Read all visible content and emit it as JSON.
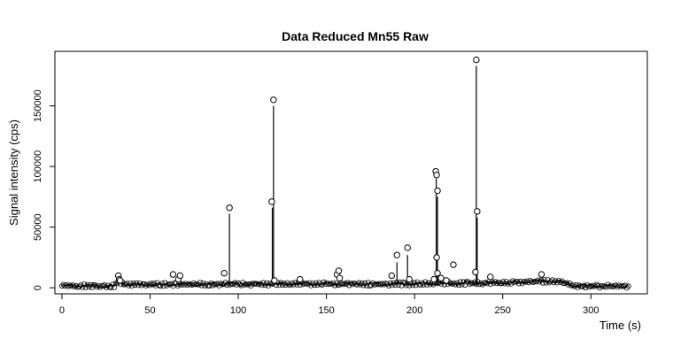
{
  "chart_data": {
    "type": "scatter",
    "title": "Data Reduced Mn55 Raw",
    "xlabel": "Time (s)",
    "ylabel": "Signal intensity (cps)",
    "xlim": [
      -4,
      332
    ],
    "ylim": [
      -5000,
      195000
    ],
    "x_ticks": [
      0,
      50,
      100,
      150,
      200,
      250,
      300
    ],
    "y_ticks": [
      0,
      50000,
      100000,
      150000
    ],
    "grid": false,
    "baseline": [
      {
        "x": 0,
        "y": 1500
      },
      {
        "x": 30,
        "y": 1500
      },
      {
        "x": 32,
        "y": 5000
      },
      {
        "x": 36,
        "y": 2500
      },
      {
        "x": 60,
        "y": 2800
      },
      {
        "x": 100,
        "y": 3000
      },
      {
        "x": 140,
        "y": 3200
      },
      {
        "x": 180,
        "y": 3000
      },
      {
        "x": 210,
        "y": 3500
      },
      {
        "x": 240,
        "y": 3800
      },
      {
        "x": 260,
        "y": 4500
      },
      {
        "x": 270,
        "y": 5500
      },
      {
        "x": 282,
        "y": 5000
      },
      {
        "x": 290,
        "y": 1500
      },
      {
        "x": 322,
        "y": 1200
      }
    ],
    "points": [
      {
        "x": 32,
        "y": 10000
      },
      {
        "x": 32.5,
        "y": 7000
      },
      {
        "x": 33,
        "y": 6000
      },
      {
        "x": 63,
        "y": 11000
      },
      {
        "x": 66,
        "y": 7000
      },
      {
        "x": 67,
        "y": 10000
      },
      {
        "x": 92,
        "y": 12000
      },
      {
        "x": 95,
        "y": 66000
      },
      {
        "x": 119,
        "y": 71000
      },
      {
        "x": 120,
        "y": 155000
      },
      {
        "x": 120.5,
        "y": 6000
      },
      {
        "x": 135,
        "y": 7000
      },
      {
        "x": 156,
        "y": 11000
      },
      {
        "x": 157,
        "y": 14000
      },
      {
        "x": 157.5,
        "y": 8000
      },
      {
        "x": 187,
        "y": 10000
      },
      {
        "x": 190,
        "y": 27000
      },
      {
        "x": 196,
        "y": 33000
      },
      {
        "x": 197,
        "y": 7000
      },
      {
        "x": 211,
        "y": 7000
      },
      {
        "x": 212,
        "y": 96000
      },
      {
        "x": 212.5,
        "y": 93000
      },
      {
        "x": 213,
        "y": 80000
      },
      {
        "x": 212.5,
        "y": 25000
      },
      {
        "x": 213,
        "y": 12000
      },
      {
        "x": 215,
        "y": 8000
      },
      {
        "x": 218,
        "y": 6000
      },
      {
        "x": 222,
        "y": 19000
      },
      {
        "x": 235,
        "y": 188000
      },
      {
        "x": 235.5,
        "y": 63000
      },
      {
        "x": 234.5,
        "y": 13000
      },
      {
        "x": 243,
        "y": 9000
      },
      {
        "x": 272,
        "y": 11000
      }
    ],
    "spikes": [
      {
        "x": 95,
        "y": 61000
      },
      {
        "x": 119.3,
        "y": 66000
      },
      {
        "x": 120,
        "y": 150000
      },
      {
        "x": 190,
        "y": 21000
      },
      {
        "x": 196,
        "y": 27000
      },
      {
        "x": 212.3,
        "y": 90000
      },
      {
        "x": 213,
        "y": 75000
      },
      {
        "x": 235,
        "y": 183000
      },
      {
        "x": 235.5,
        "y": 58000
      }
    ]
  }
}
